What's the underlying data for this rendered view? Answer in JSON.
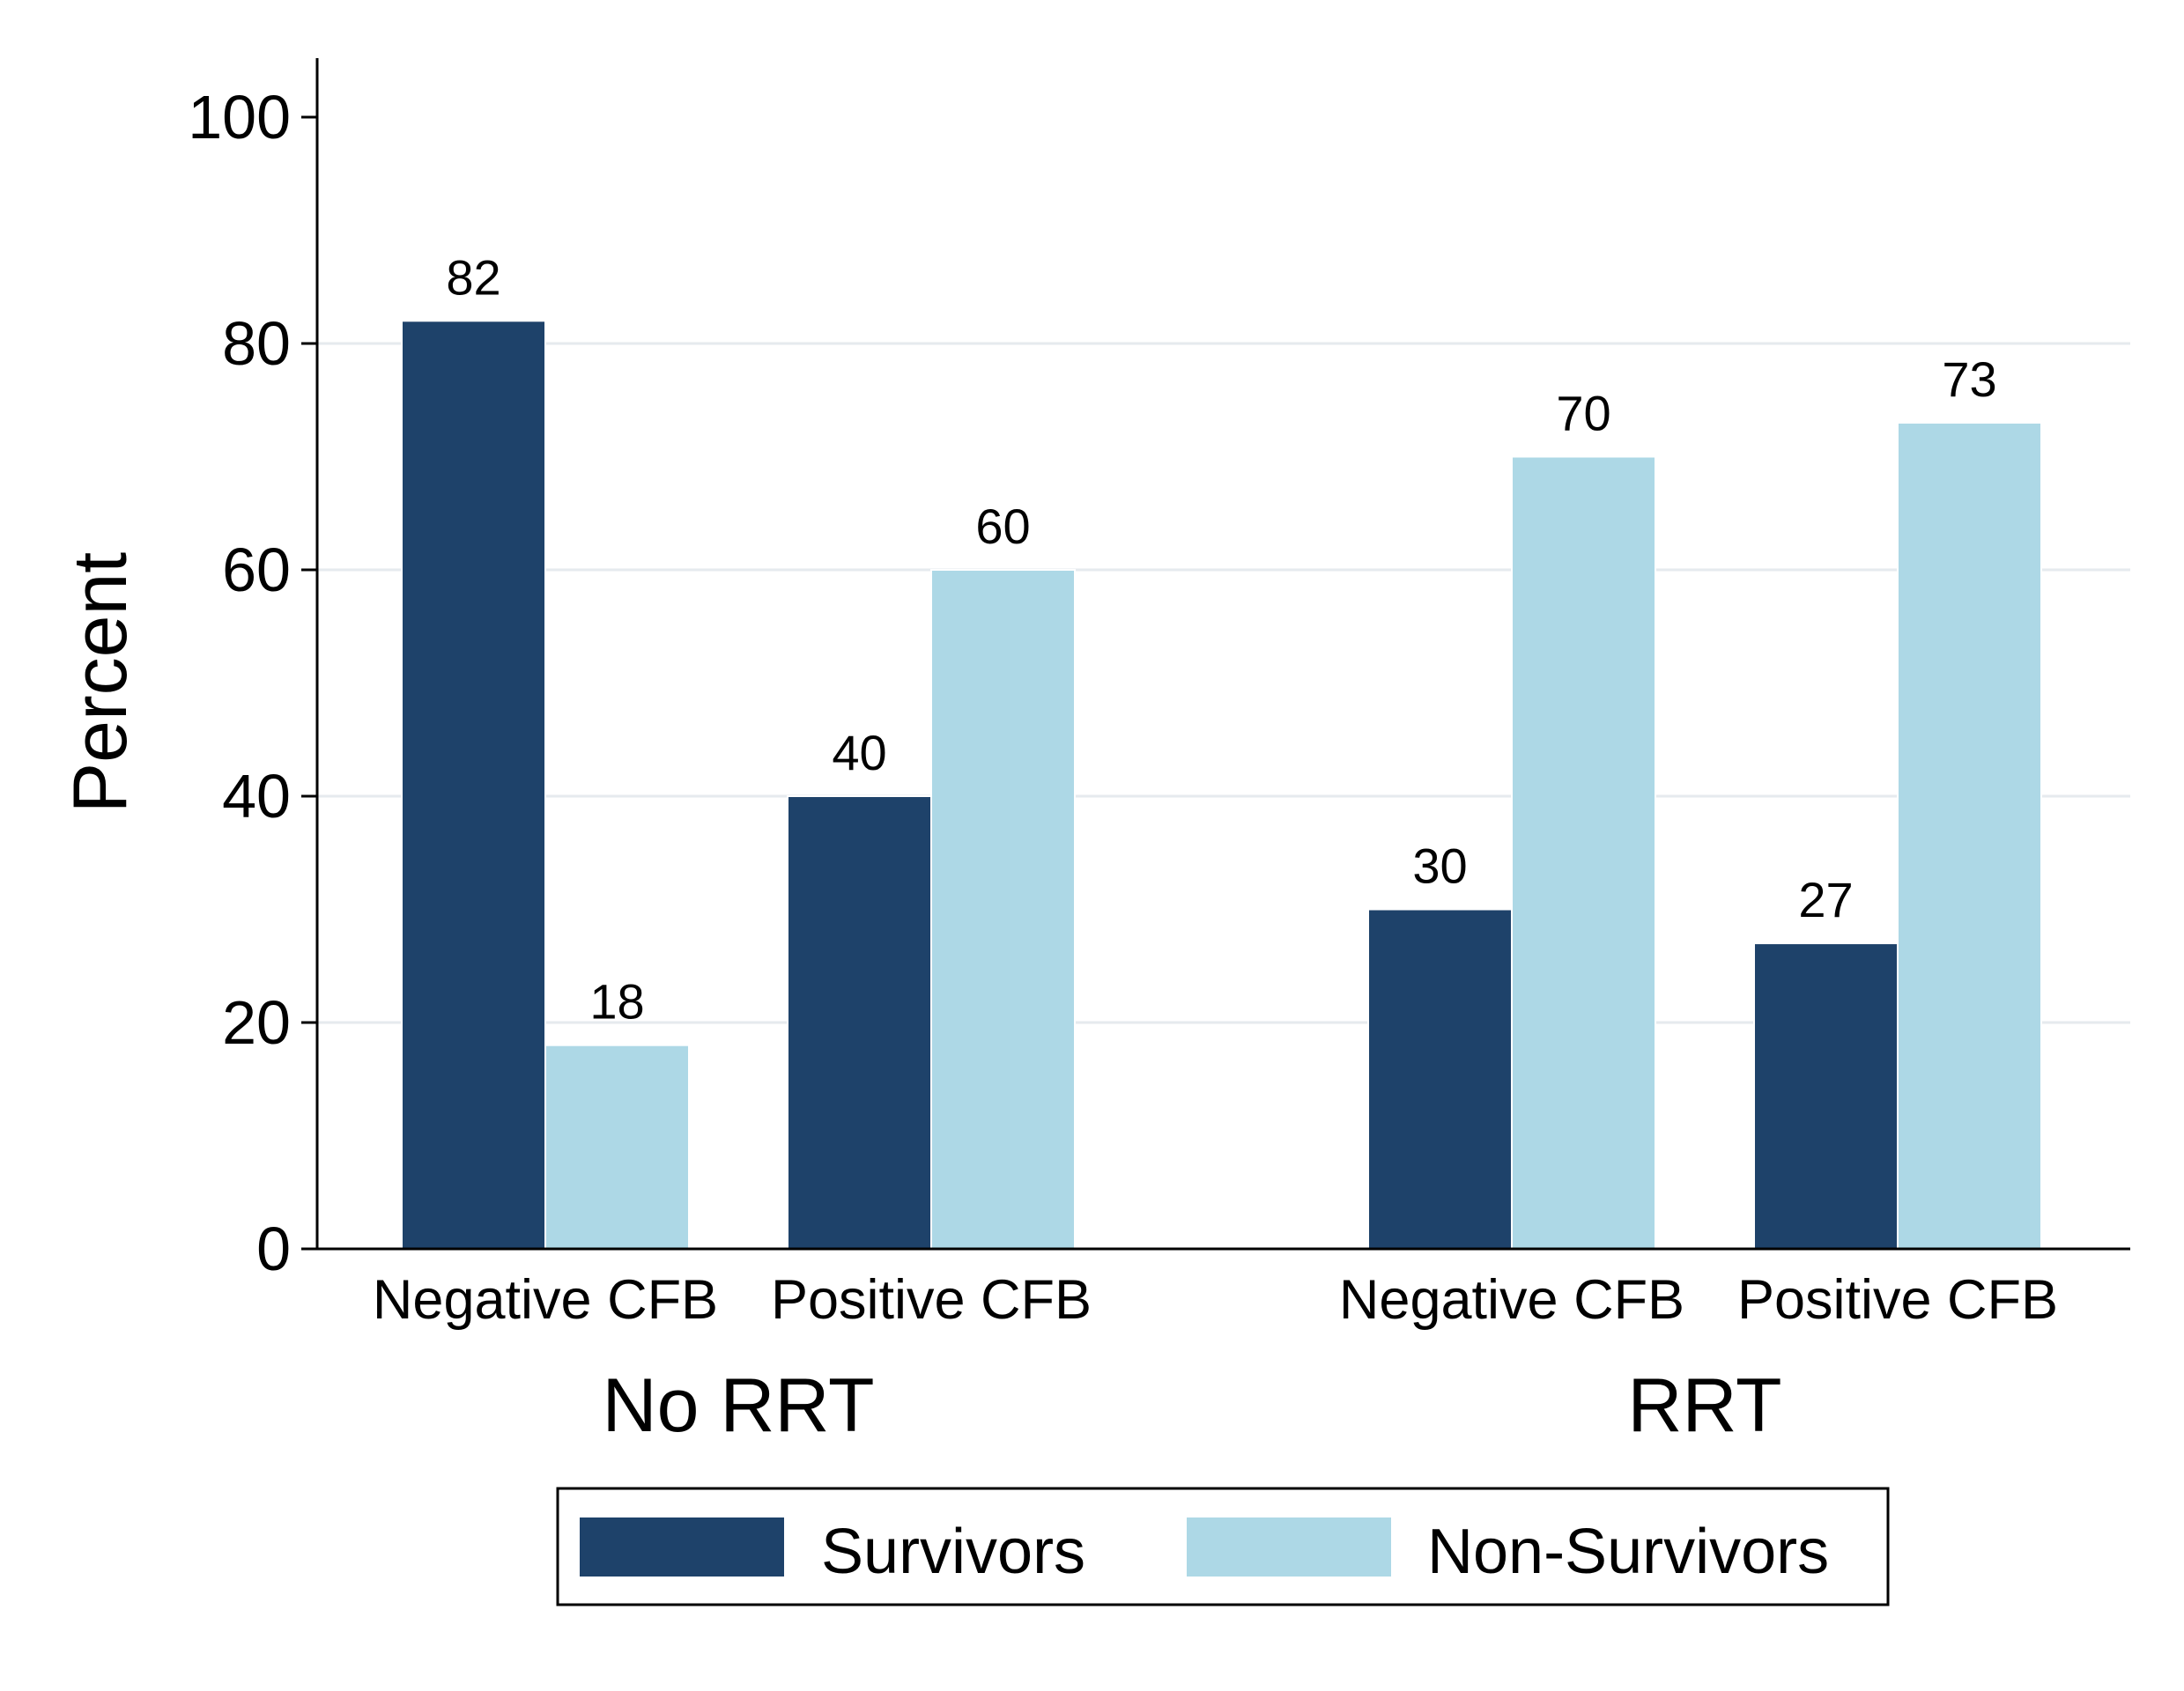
{
  "chart_data": {
    "type": "bar",
    "ylabel": "Percent",
    "ylim": [
      0,
      100
    ],
    "yticks": [
      0,
      20,
      40,
      60,
      80,
      100
    ],
    "grid": true,
    "groups": [
      {
        "label": "No RRT",
        "categories": [
          {
            "label": "Negative CFB",
            "survivors": 82,
            "non_survivors": 18
          },
          {
            "label": "Positive CFB",
            "survivors": 40,
            "non_survivors": 60
          }
        ]
      },
      {
        "label": "RRT",
        "categories": [
          {
            "label": "Negative CFB",
            "survivors": 30,
            "non_survivors": 70
          },
          {
            "label": "Positive CFB",
            "survivors": 27,
            "non_survivors": 73
          }
        ]
      }
    ],
    "series": [
      {
        "key": "survivors",
        "name": "Survivors",
        "color": "#1e426a"
      },
      {
        "key": "non_survivors",
        "name": "Non-Survivors",
        "color": "#add8e6"
      }
    ],
    "legend_position": "bottom"
  }
}
